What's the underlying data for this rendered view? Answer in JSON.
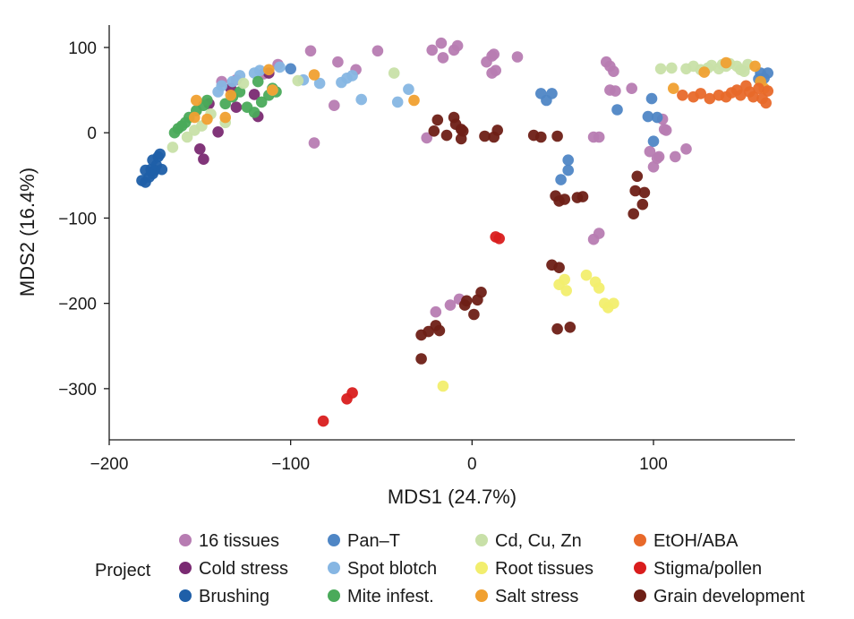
{
  "chart_data": {
    "type": "scatter",
    "xlabel": "MDS1 (24.7%)",
    "ylabel": "MDS2 (16.4%)",
    "xlim": [
      -200,
      180
    ],
    "ylim": [
      -360,
      128
    ],
    "xticks": [
      -200,
      -100,
      0,
      100
    ],
    "yticks": [
      100,
      0,
      -100,
      -200,
      -300
    ],
    "xtick_labels": [
      "−200",
      "−100",
      "0",
      "100"
    ],
    "ytick_labels": [
      "100",
      "0",
      "−100",
      "−200",
      "−300"
    ],
    "legend_title": "Project",
    "legend_position": "bottom",
    "series": [
      {
        "name": "16 tissues",
        "color": "#b77cb2",
        "points": [
          [
            -89,
            96
          ],
          [
            -74,
            83
          ],
          [
            -64,
            74
          ],
          [
            -52,
            96
          ],
          [
            -22,
            97
          ],
          [
            -17,
            105
          ],
          [
            -16,
            88
          ],
          [
            -10,
            97
          ],
          [
            -8,
            102
          ],
          [
            8,
            83
          ],
          [
            11,
            90
          ],
          [
            12,
            92
          ],
          [
            11,
            70
          ],
          [
            13,
            73
          ],
          [
            25,
            89
          ],
          [
            74,
            83
          ],
          [
            76,
            78
          ],
          [
            78,
            72
          ],
          [
            76,
            50
          ],
          [
            79,
            49
          ],
          [
            88,
            52
          ],
          [
            105,
            16
          ],
          [
            106,
            4
          ],
          [
            107,
            3
          ],
          [
            103,
            -28
          ],
          [
            98,
            -22
          ],
          [
            100,
            -40
          ],
          [
            102,
            -30
          ],
          [
            112,
            -28
          ],
          [
            118,
            -19
          ],
          [
            67,
            -5
          ],
          [
            70,
            -5
          ],
          [
            67,
            -125
          ],
          [
            70,
            -118
          ],
          [
            -25,
            -6
          ],
          [
            -7,
            -195
          ],
          [
            -12,
            -202
          ],
          [
            -87,
            -12
          ],
          [
            -76,
            32
          ],
          [
            -138,
            60
          ],
          [
            -130,
            62
          ],
          [
            -115,
            69
          ],
          [
            -20,
            -210
          ],
          [
            -107,
            80
          ]
        ]
      },
      {
        "name": "Cold stress",
        "color": "#7a2a72",
        "points": [
          [
            -150,
            -19
          ],
          [
            -148,
            -31
          ],
          [
            -118,
            19
          ],
          [
            -140,
            1
          ],
          [
            -130,
            30
          ],
          [
            -145,
            34
          ],
          [
            -120,
            45
          ],
          [
            -112,
            70
          ],
          [
            -133,
            52
          ]
        ]
      },
      {
        "name": "Brushing",
        "color": "#1f5fa8",
        "points": [
          [
            -182,
            -56
          ],
          [
            -180,
            -58
          ],
          [
            -178,
            -52
          ],
          [
            -176,
            -48
          ],
          [
            -175,
            -44
          ],
          [
            -177,
            -43
          ],
          [
            -174,
            -38
          ],
          [
            -176,
            -32
          ],
          [
            -173,
            -28
          ],
          [
            -172,
            -25
          ],
          [
            -180,
            -44
          ],
          [
            -171,
            -43
          ]
        ]
      },
      {
        "name": "Pan–T",
        "color": "#4f86c5",
        "points": [
          [
            38,
            46
          ],
          [
            41,
            38
          ],
          [
            44,
            46
          ],
          [
            49,
            -55
          ],
          [
            53,
            -44
          ],
          [
            53,
            -32
          ],
          [
            80,
            27
          ],
          [
            97,
            19
          ],
          [
            99,
            40
          ],
          [
            100,
            -10
          ],
          [
            102,
            18
          ],
          [
            158,
            63
          ],
          [
            159,
            70
          ],
          [
            161,
            64
          ],
          [
            163,
            70
          ],
          [
            -100,
            75
          ]
        ]
      },
      {
        "name": "Spot blotch",
        "color": "#86b6e3",
        "points": [
          [
            -106,
            77
          ],
          [
            -117,
            73
          ],
          [
            -120,
            70
          ],
          [
            -128,
            67
          ],
          [
            -132,
            60
          ],
          [
            -138,
            55
          ],
          [
            -140,
            48
          ],
          [
            -93,
            62
          ],
          [
            -84,
            58
          ],
          [
            -72,
            59
          ],
          [
            -69,
            64
          ],
          [
            -66,
            67
          ],
          [
            -61,
            39
          ],
          [
            -41,
            36
          ],
          [
            -35,
            51
          ]
        ]
      },
      {
        "name": "Mite infest.",
        "color": "#4aaa5a",
        "points": [
          [
            -164,
            0
          ],
          [
            -162,
            5
          ],
          [
            -160,
            8
          ],
          [
            -158,
            12
          ],
          [
            -156,
            18
          ],
          [
            -152,
            26
          ],
          [
            -148,
            32
          ],
          [
            -146,
            38
          ],
          [
            -136,
            34
          ],
          [
            -132,
            42
          ],
          [
            -128,
            48
          ],
          [
            -124,
            30
          ],
          [
            -120,
            24
          ],
          [
            -116,
            36
          ],
          [
            -112,
            44
          ],
          [
            -110,
            52
          ],
          [
            -118,
            60
          ],
          [
            -108,
            48
          ]
        ]
      },
      {
        "name": "Cd, Cu, Zn",
        "color": "#c8e0a8",
        "points": [
          [
            -165,
            -17
          ],
          [
            -157,
            -5
          ],
          [
            -153,
            3
          ],
          [
            -149,
            8
          ],
          [
            -144,
            22
          ],
          [
            -136,
            12
          ],
          [
            -126,
            58
          ],
          [
            -110,
            50
          ],
          [
            -96,
            61
          ],
          [
            -43,
            70
          ],
          [
            104,
            75
          ],
          [
            110,
            76
          ],
          [
            118,
            75
          ],
          [
            122,
            78
          ],
          [
            126,
            74
          ],
          [
            130,
            76
          ],
          [
            132,
            79
          ],
          [
            136,
            75
          ],
          [
            138,
            80
          ],
          [
            140,
            78
          ],
          [
            142,
            81
          ],
          [
            146,
            78
          ],
          [
            148,
            74
          ],
          [
            150,
            72
          ],
          [
            152,
            80
          ]
        ]
      },
      {
        "name": "Root tissues",
        "color": "#f2ee6e",
        "points": [
          [
            48,
            -178
          ],
          [
            51,
            -172
          ],
          [
            52,
            -185
          ],
          [
            63,
            -167
          ],
          [
            68,
            -175
          ],
          [
            70,
            -182
          ],
          [
            73,
            -200
          ],
          [
            75,
            -205
          ],
          [
            78,
            -200
          ],
          [
            -16,
            -297
          ]
        ]
      },
      {
        "name": "Salt stress",
        "color": "#f0a030",
        "points": [
          [
            -152,
            38
          ],
          [
            -153,
            18
          ],
          [
            -146,
            16
          ],
          [
            -136,
            18
          ],
          [
            -133,
            44
          ],
          [
            -112,
            74
          ],
          [
            -110,
            50
          ],
          [
            -87,
            68
          ],
          [
            -32,
            38
          ],
          [
            111,
            52
          ],
          [
            128,
            71
          ],
          [
            140,
            82
          ],
          [
            156,
            78
          ],
          [
            159,
            60
          ],
          [
            161,
            52
          ]
        ]
      },
      {
        "name": "EtOH/ABA",
        "color": "#e8692a",
        "points": [
          [
            116,
            44
          ],
          [
            122,
            42
          ],
          [
            126,
            46
          ],
          [
            131,
            40
          ],
          [
            136,
            44
          ],
          [
            140,
            42
          ],
          [
            143,
            47
          ],
          [
            146,
            50
          ],
          [
            148,
            44
          ],
          [
            151,
            55
          ],
          [
            153,
            48
          ],
          [
            155,
            42
          ],
          [
            158,
            52
          ],
          [
            160,
            40
          ],
          [
            162,
            35
          ],
          [
            163,
            49
          ]
        ]
      },
      {
        "name": "Stigma/pollen",
        "color": "#d91d1d",
        "points": [
          [
            13,
            -122
          ],
          [
            15,
            -124
          ],
          [
            -82,
            -338
          ],
          [
            -69,
            -312
          ],
          [
            -66,
            -305
          ]
        ]
      },
      {
        "name": "Grain development",
        "color": "#6e1f16",
        "points": [
          [
            -19,
            15
          ],
          [
            -21,
            2
          ],
          [
            -14,
            -3
          ],
          [
            -10,
            18
          ],
          [
            -9,
            10
          ],
          [
            -6,
            4
          ],
          [
            -6,
            -7
          ],
          [
            -5,
            2
          ],
          [
            7,
            -4
          ],
          [
            12,
            -5
          ],
          [
            14,
            3
          ],
          [
            34,
            -3
          ],
          [
            38,
            -5
          ],
          [
            47,
            -4
          ],
          [
            46,
            -74
          ],
          [
            48,
            -80
          ],
          [
            51,
            -78
          ],
          [
            58,
            -76
          ],
          [
            61,
            -75
          ],
          [
            44,
            -155
          ],
          [
            48,
            -158
          ],
          [
            47,
            -230
          ],
          [
            54,
            -228
          ],
          [
            89,
            -95
          ],
          [
            90,
            -68
          ],
          [
            91,
            -51
          ],
          [
            95,
            -70
          ],
          [
            94,
            -84
          ],
          [
            -28,
            -237
          ],
          [
            -24,
            -233
          ],
          [
            -20,
            -226
          ],
          [
            -18,
            -232
          ],
          [
            -28,
            -265
          ],
          [
            -4,
            -202
          ],
          [
            -3,
            -197
          ],
          [
            1,
            -213
          ],
          [
            3,
            -196
          ],
          [
            5,
            -187
          ]
        ]
      }
    ]
  }
}
